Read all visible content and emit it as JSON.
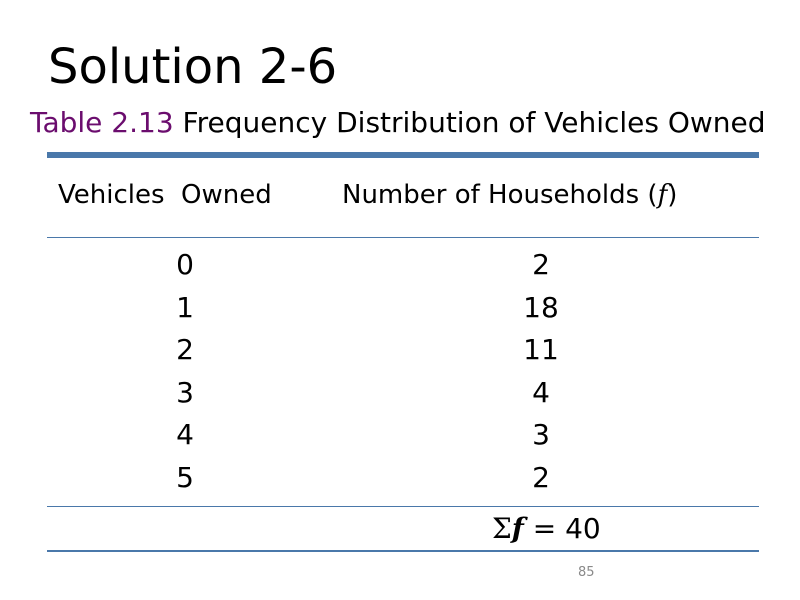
{
  "title": "Solution 2-6",
  "caption": {
    "tag": "Table 2.13",
    "text": " Frequency Distribution of Vehicles Owned"
  },
  "table": {
    "headers": {
      "col1": "Vehicles  Owned",
      "col2_prefix": "Number of Households (",
      "col2_symbol": "f",
      "col2_suffix": ")"
    },
    "rows": [
      {
        "vehicles": "0",
        "households": "2"
      },
      {
        "vehicles": "1",
        "households": "18"
      },
      {
        "vehicles": "2",
        "households": "11"
      },
      {
        "vehicles": "3",
        "households": "4"
      },
      {
        "vehicles": "4",
        "households": "3"
      },
      {
        "vehicles": "5",
        "households": "2"
      }
    ],
    "total": {
      "sigma": "Σ",
      "symbol": "f",
      "equals": " = ",
      "value": "40"
    }
  },
  "page_number": "85",
  "colors": {
    "caption_tag": "#6b0d6e",
    "rule": "#4a78aa"
  }
}
